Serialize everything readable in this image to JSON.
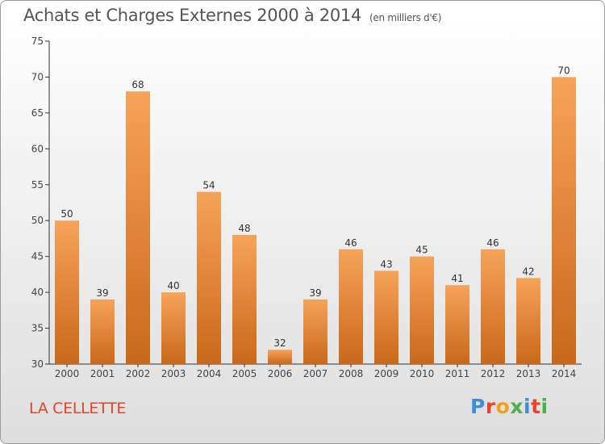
{
  "header": {
    "title": "Achats et Charges Externes 2000 à 2014",
    "unit": "(en milliers d'€)"
  },
  "footer": {
    "commune": "LA CELLETTE",
    "logo": "Proxiti"
  },
  "colors": {
    "bar_light": "#f6a35a",
    "bar_dark": "#c9681a",
    "commune_text": "#e0452a",
    "logo_letters": [
      "#3a8fd8",
      "#e8432c",
      "#f0a020",
      "#49b24a",
      "#3a8fd8",
      "#e8432c",
      "#49b24a"
    ]
  },
  "chart_data": {
    "type": "bar",
    "title": "Achats et Charges Externes 2000 à 2014",
    "subtitle": "(en milliers d'€)",
    "categories": [
      "2000",
      "2001",
      "2002",
      "2003",
      "2004",
      "2005",
      "2006",
      "2007",
      "2008",
      "2009",
      "2010",
      "2011",
      "2012",
      "2013",
      "2014"
    ],
    "values": [
      50,
      39,
      68,
      40,
      54,
      48,
      32,
      39,
      46,
      43,
      45,
      41,
      46,
      42,
      70
    ],
    "ylim": [
      30,
      75
    ],
    "yticks": [
      30,
      35,
      40,
      45,
      50,
      55,
      60,
      65,
      70,
      75
    ],
    "grid": false,
    "data_labels": true
  }
}
